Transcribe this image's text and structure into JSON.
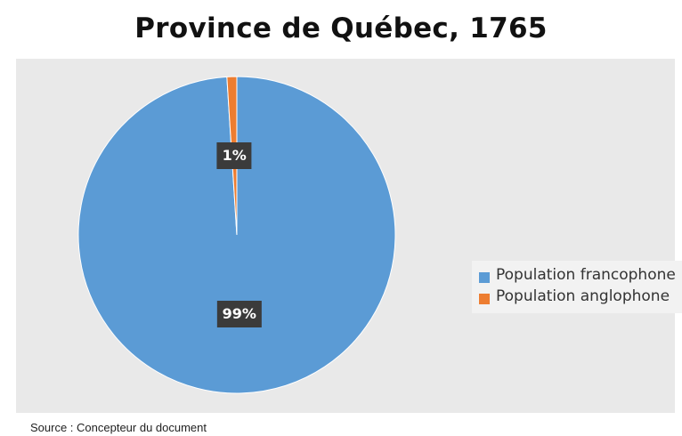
{
  "source_note": "Source : Concepteur du document",
  "chart_data": {
    "type": "pie",
    "title": "Province de Québec, 1765",
    "slices": [
      {
        "label": "Population francophone",
        "value": 99,
        "display": "99%",
        "color": "#5b9bd5"
      },
      {
        "label": "Population anglophone",
        "value": 1,
        "display": "1%",
        "color": "#ed7d31"
      }
    ],
    "legend_position": "right",
    "data_labels": true
  }
}
